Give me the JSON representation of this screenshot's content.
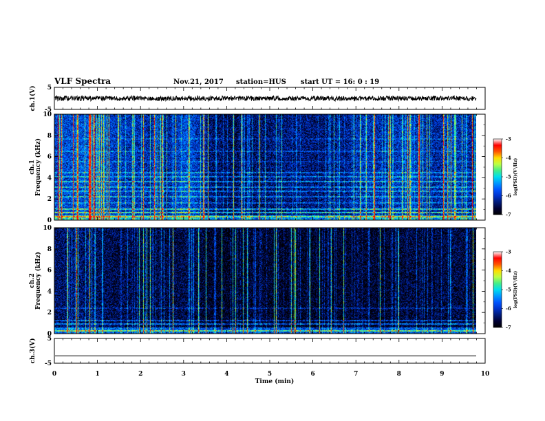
{
  "header": {
    "title": "VLF Spectra",
    "date": "Nov.21, 2017",
    "station": "station=HUS",
    "start": "start  UT  =   16: 0  : 19"
  },
  "chart_data": [
    {
      "type": "line",
      "name": "waveform-ch1",
      "ylabel": "ch.1(V)",
      "ylim": [
        -5,
        5
      ],
      "yticks": [
        "5",
        "-5"
      ],
      "baseline": 0,
      "noise_amplitude": 1.1
    },
    {
      "type": "heatmap",
      "name": "spectrogram-ch1",
      "ylabel_channel": "ch.1",
      "ylabel": "Frequency  (kHz)",
      "ylim": [
        0,
        10
      ],
      "yticks": [
        "0",
        "2",
        "4",
        "6",
        "8",
        "10"
      ],
      "colorbar": {
        "label": "log(PSD)(V²/Hz)",
        "range": [
          -7,
          -3
        ],
        "ticks": [
          "-3",
          "-4",
          "-5",
          "-6",
          "-7"
        ]
      },
      "activity_profile": [
        0.8,
        0.95,
        0.9,
        0.75,
        0.7,
        0.55,
        1.0,
        0.45,
        0.35,
        0.4,
        0.5,
        0.5,
        0.45,
        0.5,
        0.75,
        0.65,
        0.85,
        0.6,
        0.8,
        0.55
      ]
    },
    {
      "type": "heatmap",
      "name": "spectrogram-ch2",
      "ylabel_channel": "ch.2",
      "ylabel": "Frequency  (kHz)",
      "ylim": [
        0,
        10
      ],
      "yticks": [
        "0",
        "2",
        "4",
        "6",
        "8",
        "10"
      ],
      "colorbar": {
        "label": "log(PSD)(V²/Hz)",
        "range": [
          -7,
          -3
        ],
        "ticks": [
          "-3",
          "-4",
          "-5",
          "-6",
          "-7"
        ]
      },
      "activity_profile": [
        0.55,
        0.6,
        0.5,
        0.45,
        0.4,
        0.4,
        0.45,
        0.3,
        0.25,
        0.35,
        0.3,
        0.3,
        0.25,
        0.3,
        0.35,
        0.3,
        0.4,
        0.3,
        0.45,
        0.3
      ]
    },
    {
      "type": "line",
      "name": "waveform-ch3",
      "ylabel": "ch.3(V)",
      "ylim": [
        -5,
        5
      ],
      "yticks": [
        "5",
        "-5"
      ],
      "baseline": -2.0,
      "noise_amplitude": 0.0
    }
  ],
  "x_axis": {
    "label": "Time  (min)",
    "range": [
      0,
      10
    ],
    "ticks": [
      "0",
      "1",
      "2",
      "3",
      "4",
      "5",
      "6",
      "7",
      "8",
      "9",
      "10"
    ],
    "data_end": 9.8
  },
  "colors": {
    "colormap": [
      "#000000",
      "#000033",
      "#001a7a",
      "#0033cc",
      "#0055ff",
      "#0099ff",
      "#00ddee",
      "#44ee88",
      "#bbff44",
      "#ffdd00",
      "#ff5500",
      "#ff0000",
      "#ffffff"
    ]
  }
}
